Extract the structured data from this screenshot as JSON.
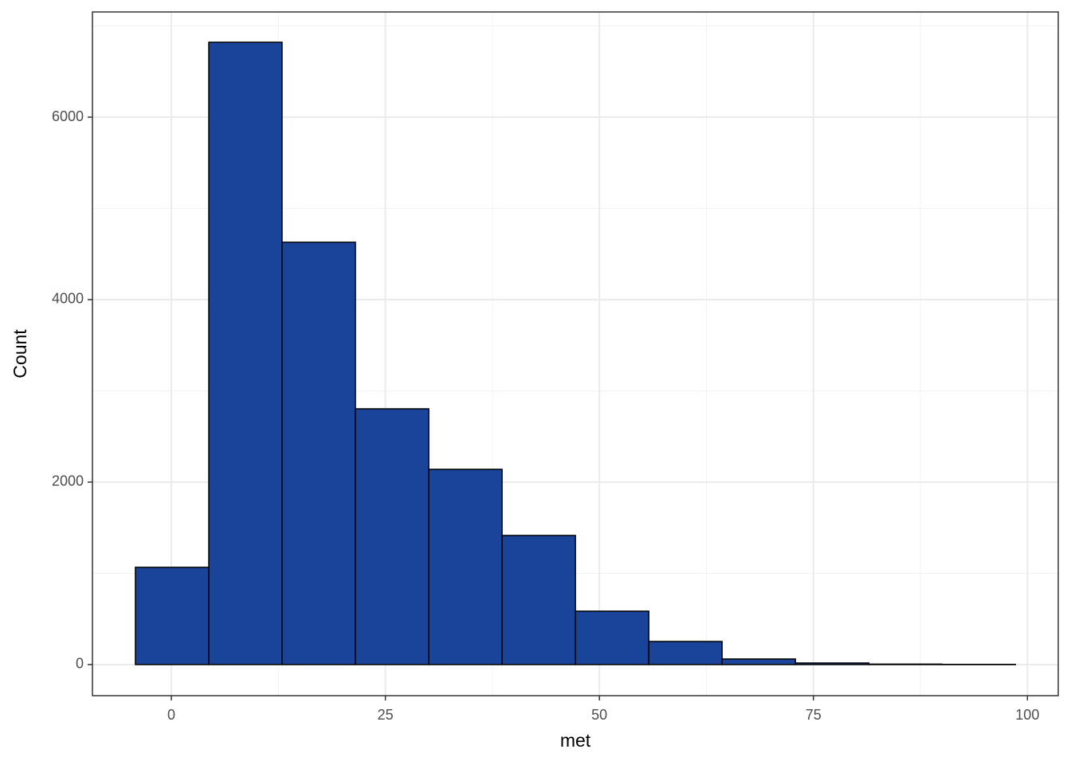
{
  "chart_data": {
    "type": "histogram",
    "x_label": "met",
    "y_label": "Count",
    "bins": [
      -4.2,
      4.37,
      12.93,
      21.5,
      30.07,
      38.63,
      47.2,
      55.77,
      64.33,
      72.9,
      81.47,
      90.03,
      98.6
    ],
    "values": [
      1066,
      6821,
      4629,
      2803,
      2140,
      1415,
      585,
      253,
      61,
      17,
      5,
      2
    ],
    "color": "#1a4499",
    "edge_color": "#000000",
    "xlim": [
      -9.22,
      103.6
    ],
    "xticks": [
      0,
      25,
      50,
      75,
      100
    ],
    "ylim": [
      -341,
      7153
    ],
    "yticks": [
      0,
      2000,
      4000,
      6000
    ],
    "grid": true,
    "minor_grid": true
  }
}
